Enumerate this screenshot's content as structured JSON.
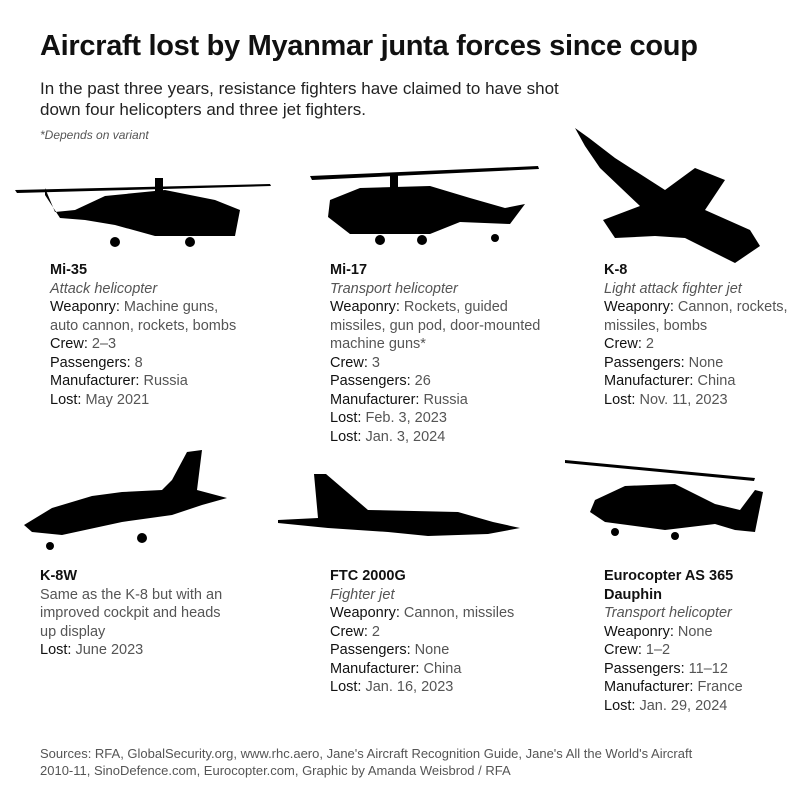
{
  "title": "Aircraft lost by Myanmar junta forces since coup",
  "subtitle": "In the past three years, resistance fighters have claimed to have shot down four helicopters and three jet fighters.",
  "footnote": "*Depends on variant",
  "aircraft": [
    {
      "name": "Mi-35",
      "type": "Attack helicopter",
      "icon": "attack-helicopter-silhouette",
      "fields": [
        {
          "label": "Weaponry:",
          "value": "Machine guns, auto cannon, rockets, bombs"
        },
        {
          "label": "Crew:",
          "value": "2–3"
        },
        {
          "label": "Passengers:",
          "value": "8"
        },
        {
          "label": "Manufacturer:",
          "value": "Russia"
        },
        {
          "label": "Lost:",
          "value": "May 2021"
        }
      ]
    },
    {
      "name": "Mi-17",
      "type": "Transport helicopter",
      "icon": "transport-helicopter-silhouette",
      "fields": [
        {
          "label": "Weaponry:",
          "value": "Rockets, guided missiles, gun pod, door-mounted machine guns*"
        },
        {
          "label": "Crew:",
          "value": "3"
        },
        {
          "label": "Passengers:",
          "value": "26"
        },
        {
          "label": "Manufacturer:",
          "value": "Russia"
        },
        {
          "label": "Lost:",
          "value": "Feb. 3, 2023"
        },
        {
          "label": "Lost:",
          "value": "Jan. 3, 2024"
        }
      ]
    },
    {
      "name": "K-8",
      "type": "Light attack fighter jet",
      "icon": "jet-silhouette",
      "fields": [
        {
          "label": "Weaponry:",
          "value": "Cannon, rockets, missiles, bombs"
        },
        {
          "label": "Crew:",
          "value": "2"
        },
        {
          "label": "Passengers:",
          "value": "None"
        },
        {
          "label": "Manufacturer:",
          "value": "China"
        },
        {
          "label": "Lost:",
          "value": "Nov. 11, 2023"
        }
      ]
    },
    {
      "name": "K-8W",
      "description": "Same as the K-8 but with an improved cockpit and heads up display",
      "icon": "jet-silhouette",
      "fields": [
        {
          "label": "Lost:",
          "value": "June 2023"
        }
      ]
    },
    {
      "name": "FTC 2000G",
      "type": "Fighter jet",
      "icon": "fighter-jet-silhouette",
      "fields": [
        {
          "label": "Weaponry:",
          "value": "Cannon, missiles"
        },
        {
          "label": "Crew:",
          "value": "2"
        },
        {
          "label": "Passengers:",
          "value": "None"
        },
        {
          "label": "Manufacturer:",
          "value": "China"
        },
        {
          "label": "Lost:",
          "value": "Jan. 16, 2023"
        }
      ]
    },
    {
      "name": "Eurocopter AS 365 Dauphin",
      "type": "Transport helicopter",
      "icon": "helicopter-silhouette",
      "fields": [
        {
          "label": "Weaponry:",
          "value": "None"
        },
        {
          "label": "Crew:",
          "value": "1–2"
        },
        {
          "label": "Passengers:",
          "value": "11–12"
        },
        {
          "label": "Manufacturer:",
          "value": "France"
        },
        {
          "label": "Lost:",
          "value": "Jan. 29, 2024"
        }
      ]
    }
  ],
  "sources": "Sources: RFA, GlobalSecurity.org, www.rhc.aero, Jane's Aircraft Recognition Guide, Jane's All the World's Aircraft 2010-11, SinoDefence.com, Eurocopter.com, Graphic by Amanda Weisbrod / RFA"
}
